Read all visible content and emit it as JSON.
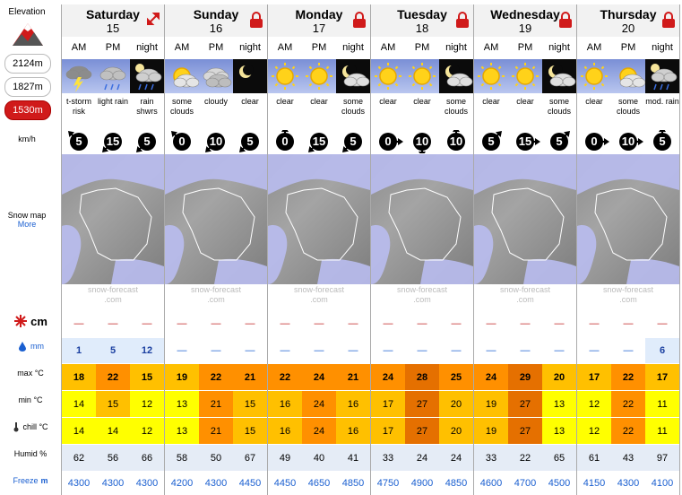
{
  "sidebar": {
    "elevation_title": "Elevation",
    "elevations": [
      "2124m",
      "1827m",
      "1530m"
    ],
    "active_elevation": "1530m",
    "wind_unit": "km/h",
    "snow_map_label": "Snow map",
    "snow_map_more": "More",
    "snow_label": "cm",
    "rain_label": "mm",
    "max_label": "max °C",
    "min_label": "min °C",
    "chill_label": "chill °C",
    "humid_label": "Humid %",
    "freeze_label": "Freeze",
    "freeze_unit": "m"
  },
  "credit": {
    "line1": "snow-forecast",
    "line2": ".com"
  },
  "colors": {
    "active_elevation": "#d01a1a",
    "temp_yellow": "#ffff00",
    "temp_light_orange": "#ffc000",
    "temp_orange": "#ff9000",
    "temp_dark_orange": "#e57000",
    "snow_dash": "#c02020",
    "rain_dash": "#1a5fd0"
  },
  "days": [
    {
      "name": "Saturday",
      "num": "15",
      "badge": "expand-icon",
      "periods": [
        "AM",
        "PM",
        "night"
      ],
      "icons": [
        "thunderstorm-icon",
        "light-rain-icon",
        "night-rain-icon"
      ],
      "desc": [
        "t-storm risk",
        "light rain",
        "rain shwrs"
      ],
      "wind": [
        {
          "speed": "5",
          "dir": "nw"
        },
        {
          "speed": "15",
          "dir": "sw"
        },
        {
          "speed": "5",
          "dir": "sw"
        }
      ],
      "snow": [
        "—",
        "—",
        "—"
      ],
      "rain": [
        "1",
        "5",
        "12"
      ],
      "max": [
        "18",
        "22",
        "15"
      ],
      "min": [
        "14",
        "15",
        "12"
      ],
      "chill": [
        "14",
        "14",
        "12"
      ],
      "humid": [
        "62",
        "56",
        "66"
      ],
      "freeze": [
        "4300",
        "4300",
        "4300"
      ]
    },
    {
      "name": "Sunday",
      "num": "16",
      "badge": "lock-icon",
      "periods": [
        "AM",
        "PM",
        "night"
      ],
      "icons": [
        "partly-cloudy-icon",
        "cloudy-icon",
        "clear-night-icon"
      ],
      "desc": [
        "some clouds",
        "cloudy",
        "clear"
      ],
      "wind": [
        {
          "speed": "0",
          "dir": "nw"
        },
        {
          "speed": "10",
          "dir": "sw"
        },
        {
          "speed": "5",
          "dir": "sw"
        }
      ],
      "snow": [
        "—",
        "—",
        "—"
      ],
      "rain": [
        "—",
        "—",
        "—"
      ],
      "max": [
        "19",
        "22",
        "21"
      ],
      "min": [
        "13",
        "21",
        "15"
      ],
      "chill": [
        "13",
        "21",
        "15"
      ],
      "humid": [
        "58",
        "50",
        "67"
      ],
      "freeze": [
        "4200",
        "4300",
        "4450"
      ]
    },
    {
      "name": "Monday",
      "num": "17",
      "badge": "lock-icon",
      "periods": [
        "AM",
        "PM",
        "night"
      ],
      "icons": [
        "sunny-icon",
        "sunny-icon",
        "partly-cloudy-night-icon"
      ],
      "desc": [
        "clear",
        "clear",
        "some clouds"
      ],
      "wind": [
        {
          "speed": "0",
          "dir": "n"
        },
        {
          "speed": "15",
          "dir": "sw"
        },
        {
          "speed": "5",
          "dir": "sw"
        }
      ],
      "snow": [
        "—",
        "—",
        "—"
      ],
      "rain": [
        "—",
        "—",
        "—"
      ],
      "max": [
        "22",
        "24",
        "21"
      ],
      "min": [
        "16",
        "24",
        "16"
      ],
      "chill": [
        "16",
        "24",
        "16"
      ],
      "humid": [
        "49",
        "40",
        "41"
      ],
      "freeze": [
        "4450",
        "4650",
        "4850"
      ]
    },
    {
      "name": "Tuesday",
      "num": "18",
      "badge": "lock-icon",
      "periods": [
        "AM",
        "PM",
        "night"
      ],
      "icons": [
        "sunny-icon",
        "sunny-icon",
        "partly-cloudy-night-icon"
      ],
      "desc": [
        "clear",
        "clear",
        "some clouds"
      ],
      "wind": [
        {
          "speed": "0",
          "dir": "e"
        },
        {
          "speed": "10",
          "dir": "s"
        },
        {
          "speed": "10",
          "dir": "n"
        }
      ],
      "snow": [
        "—",
        "—",
        "—"
      ],
      "rain": [
        "—",
        "—",
        "—"
      ],
      "max": [
        "24",
        "28",
        "25"
      ],
      "min": [
        "17",
        "27",
        "20"
      ],
      "chill": [
        "17",
        "27",
        "20"
      ],
      "humid": [
        "33",
        "24",
        "24"
      ],
      "freeze": [
        "4750",
        "4900",
        "4850"
      ]
    },
    {
      "name": "Wednesday",
      "num": "19",
      "badge": "lock-icon",
      "periods": [
        "AM",
        "PM",
        "night"
      ],
      "icons": [
        "sunny-icon",
        "sunny-icon",
        "partly-cloudy-night-icon"
      ],
      "desc": [
        "clear",
        "clear",
        "some clouds"
      ],
      "wind": [
        {
          "speed": "5",
          "dir": "ne"
        },
        {
          "speed": "15",
          "dir": "e"
        },
        {
          "speed": "5",
          "dir": "ne"
        }
      ],
      "snow": [
        "—",
        "—",
        "—"
      ],
      "rain": [
        "—",
        "—",
        "—"
      ],
      "max": [
        "24",
        "29",
        "20"
      ],
      "min": [
        "19",
        "27",
        "13"
      ],
      "chill": [
        "19",
        "27",
        "13"
      ],
      "humid": [
        "33",
        "22",
        "65"
      ],
      "freeze": [
        "4600",
        "4700",
        "4500"
      ]
    },
    {
      "name": "Thursday",
      "num": "20",
      "badge": "lock-icon",
      "periods": [
        "AM",
        "PM",
        "night"
      ],
      "icons": [
        "sunny-icon",
        "partly-cloudy-icon",
        "night-rain-icon"
      ],
      "desc": [
        "clear",
        "some clouds",
        "mod. rain"
      ],
      "wind": [
        {
          "speed": "0",
          "dir": "e"
        },
        {
          "speed": "10",
          "dir": "e"
        },
        {
          "speed": "5",
          "dir": "n"
        }
      ],
      "snow": [
        "—",
        "—",
        "—"
      ],
      "rain": [
        "—",
        "—",
        "6"
      ],
      "max": [
        "17",
        "22",
        "17"
      ],
      "min": [
        "12",
        "22",
        "11"
      ],
      "chill": [
        "12",
        "22",
        "11"
      ],
      "humid": [
        "61",
        "43",
        "97"
      ],
      "freeze": [
        "4150",
        "4300",
        "4100"
      ]
    }
  ]
}
